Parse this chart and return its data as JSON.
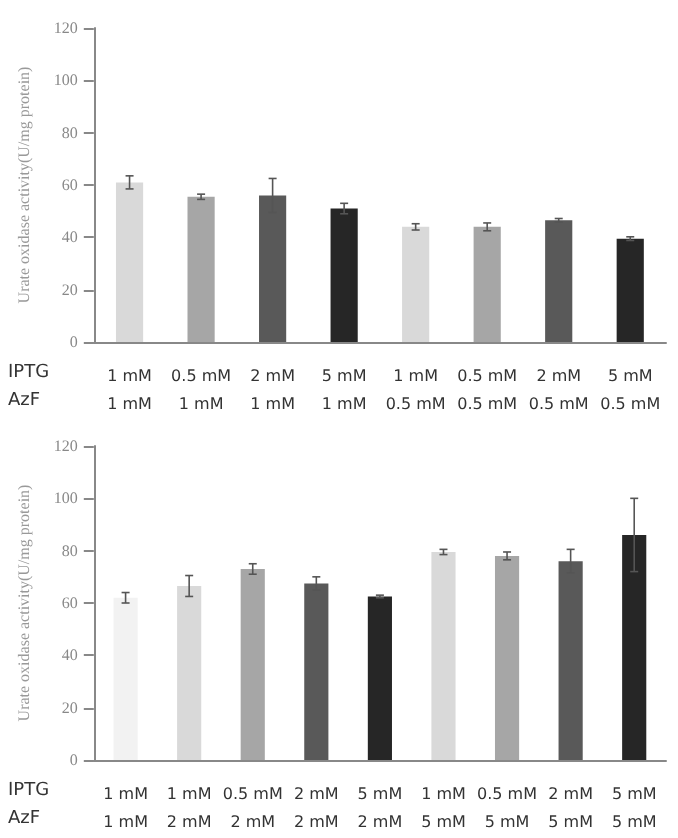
{
  "chart_data": [
    {
      "type": "bar",
      "ylabel": "Urate oxidase activity(U/mg protein)",
      "annotations": [
        "IPTG",
        "AzF"
      ],
      "categories": [
        "1 mM\n1 mM",
        "0.5 mM\n1 mM",
        "2 mM\n1 mM",
        "5 mM\n1 mM",
        "1 mM\n0.5 mM",
        "0.5 mM\n0.5 mM",
        "2 mM\n0.5 mM",
        "5 mM\n0.5 mM"
      ],
      "values": [
        61,
        55.5,
        56,
        51,
        44,
        44,
        46.5,
        39.5
      ],
      "errors": [
        2.5,
        1,
        6.5,
        2,
        1.2,
        1.5,
        0.7,
        0.7
      ],
      "colors": [
        "#d9d9d9",
        "#a6a6a6",
        "#595959",
        "#262626",
        "#d9d9d9",
        "#a6a6a6",
        "#595959",
        "#262626"
      ],
      "ylim": [
        0,
        120
      ],
      "yticks": [
        0,
        20,
        40,
        60,
        80,
        100,
        120
      ],
      "grid": false
    },
    {
      "type": "bar",
      "ylabel": "Urate oxidase activity(U/mg protein)",
      "annotations": [
        "IPTG",
        "AzF"
      ],
      "categories": [
        "1 mM\n1 mM",
        "1 mM\n2 mM",
        "0.5 mM\n2 mM",
        "2 mM\n2 mM",
        "5 mM\n2 mM",
        "1 mM\n5 mM",
        "0.5 mM\n5 mM",
        "2 mM\n5 mM",
        "5 mM\n5 mM"
      ],
      "values": [
        62,
        66.5,
        73,
        67.5,
        62.5,
        79.5,
        78,
        76,
        86
      ],
      "errors": [
        2,
        4,
        2,
        2.5,
        0.5,
        1,
        1.5,
        4.5,
        14
      ],
      "colors": [
        "#f2f2f2",
        "#d9d9d9",
        "#a6a6a6",
        "#595959",
        "#262626",
        "#d9d9d9",
        "#a6a6a6",
        "#595959",
        "#262626"
      ],
      "ylim": [
        0,
        120
      ],
      "yticks": [
        0,
        20,
        40,
        60,
        80,
        100,
        120
      ],
      "grid": false
    }
  ]
}
